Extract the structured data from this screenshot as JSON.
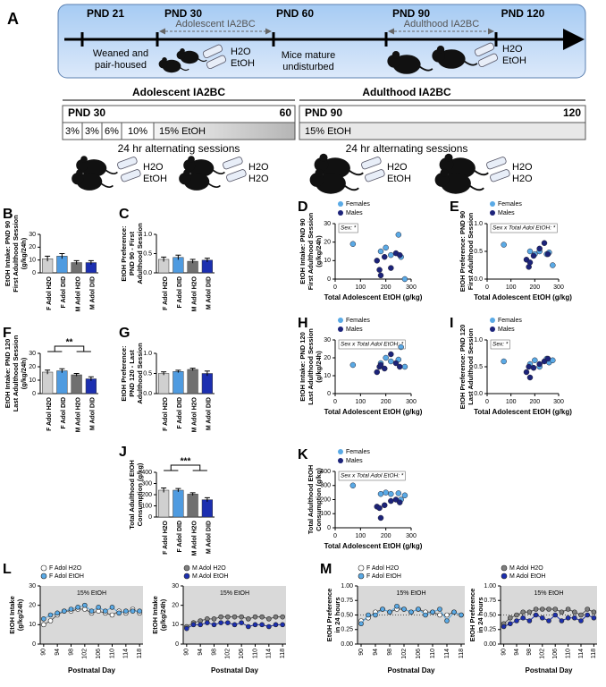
{
  "panel_a": {
    "label": "A",
    "timeline": {
      "marks": [
        "PND 21",
        "PND 30",
        "PND 60",
        "PND 90",
        "PND 120"
      ],
      "adolescent": "Adolescent IA2BC",
      "adulthood": "Adulthood IA2BC",
      "weaned": [
        "Weaned and",
        "pair-housed"
      ],
      "mature": [
        "Mice mature",
        "undisturbed"
      ],
      "bottles1": [
        "H2O",
        "EtOH"
      ],
      "bottles2": [
        "H2O",
        "EtOH"
      ]
    },
    "schedule": {
      "adolescent": {
        "title": "Adolescent IA2BC",
        "start": "PND 30",
        "end": "60",
        "steps": [
          "3%",
          "3%",
          "6%",
          "10%",
          "15% EtOH"
        ],
        "note": "24 hr alternating sessions",
        "bottles": [
          [
            "H2O",
            "EtOH"
          ],
          [
            "H2O",
            "H2O"
          ]
        ]
      },
      "adulthood": {
        "title": "Adulthood IA2BC",
        "start": "PND 90",
        "end": "120",
        "steps": [
          "15% EtOH"
        ],
        "note": "24 hr alternating sessions",
        "bottles": [
          [
            "H2O",
            "EtOH"
          ],
          [
            "H2O",
            "H2O"
          ]
        ]
      }
    }
  },
  "chart_data": [
    {
      "type": "bar",
      "panel": "B",
      "ylabel": [
        "EtOH Intake: PND 90",
        "First Adulthood Session",
        "(g/kg/24h)"
      ],
      "categories": [
        "F Adol H2O",
        "F Adol DID",
        "M Adol H2O",
        "M Adol DID"
      ],
      "values": [
        11,
        13,
        8,
        8
      ],
      "errors": [
        2,
        2,
        1.5,
        1.5
      ],
      "colors": [
        "#d0d0d0",
        "#4f9be0",
        "#707070",
        "#1c2fb0"
      ],
      "ylim": [
        0,
        30
      ],
      "yticks": [
        0,
        10,
        20,
        30
      ]
    },
    {
      "type": "bar",
      "panel": "C",
      "ylabel": [
        "EtOH Preference:",
        "PND 90 - First",
        "Adulthood Session"
      ],
      "categories": [
        "F Adol H2O",
        "F Adol DID",
        "M Adol H2O",
        "M Adol DID"
      ],
      "values": [
        0.35,
        0.4,
        0.3,
        0.33
      ],
      "errors": [
        0.06,
        0.06,
        0.05,
        0.05
      ],
      "colors": [
        "#d0d0d0",
        "#4f9be0",
        "#707070",
        "#1c2fb0"
      ],
      "ylim": [
        0,
        1
      ],
      "yticks": [
        {
          "value": 0,
          "label": "0.0"
        },
        0.5,
        {
          "value": 1,
          "label": "1.0"
        }
      ]
    },
    {
      "type": "scatter",
      "panel": "D",
      "ylabel": [
        "EtOH Intake: PND 90",
        "First Adulthood Session",
        "(g/kg/24h)"
      ],
      "xlabel": "Total Adolescent EtOH (g/kg)",
      "annotation": "Sex: *",
      "xlim": [
        0,
        300
      ],
      "xticks": [
        0,
        100,
        200,
        300
      ],
      "ylim": [
        0,
        30
      ],
      "yticks": [
        0,
        10,
        20,
        30
      ],
      "series": [
        {
          "name": "Females",
          "color": "#5aaae6",
          "x": [
            70,
            180,
            200,
            220,
            250,
            260,
            275
          ],
          "values": [
            19,
            15,
            17,
            13,
            24,
            12,
            0
          ]
        },
        {
          "name": "Males",
          "color": "#1c237a",
          "x": [
            165,
            175,
            180,
            195,
            220,
            240,
            255
          ],
          "values": [
            10,
            5,
            2,
            12,
            6,
            14,
            13
          ]
        }
      ]
    },
    {
      "type": "scatter",
      "panel": "E",
      "ylabel": [
        "EtOH Preference: PND 90",
        "First Adulthood Session"
      ],
      "xlabel": "Total Adolescent EtOH (g/kg)",
      "annotation": "Sex x Total Adol EtOH: *",
      "xlim": [
        0,
        300
      ],
      "xticks": [
        0,
        100,
        200,
        300
      ],
      "ylim": [
        0,
        1
      ],
      "yticks": [
        {
          "value": 0,
          "label": "0.0"
        },
        0.5,
        {
          "value": 1,
          "label": "1.0"
        }
      ],
      "series": [
        {
          "name": "Females",
          "color": "#5aaae6",
          "x": [
            70,
            180,
            200,
            220,
            250,
            260,
            275
          ],
          "values": [
            0.62,
            0.5,
            0.45,
            0.5,
            0.45,
            0.48,
            0.25
          ]
        },
        {
          "name": "Males",
          "color": "#1c237a",
          "x": [
            165,
            175,
            180,
            195,
            220,
            240,
            255
          ],
          "values": [
            0.35,
            0.22,
            0.3,
            0.42,
            0.55,
            0.65,
            0.45
          ]
        }
      ]
    },
    {
      "type": "bar",
      "panel": "F",
      "ylabel": [
        "EtOH Intake: PND 120",
        "Last Adulthood Session",
        "(g/kg/24h)"
      ],
      "annotation": "**",
      "categories": [
        "F Adol H2O",
        "F Adol DID",
        "M Adol H2O",
        "M Adol DID"
      ],
      "values": [
        16,
        17,
        14,
        11
      ],
      "errors": [
        1.5,
        1.5,
        1,
        1.5
      ],
      "colors": [
        "#d0d0d0",
        "#4f9be0",
        "#707070",
        "#1c2fb0"
      ],
      "ylim": [
        0,
        30
      ],
      "yticks": [
        0,
        10,
        20,
        30
      ]
    },
    {
      "type": "bar",
      "panel": "G",
      "ylabel": [
        "EtOH Preference:",
        "PND 120 - Last",
        "Adulthood Session"
      ],
      "categories": [
        "F Adol H2O",
        "F Adol DID",
        "M Adol H2O",
        "M Adol DID"
      ],
      "values": [
        0.5,
        0.55,
        0.6,
        0.5
      ],
      "errors": [
        0.04,
        0.03,
        0.03,
        0.06
      ],
      "colors": [
        "#d0d0d0",
        "#4f9be0",
        "#707070",
        "#1c2fb0"
      ],
      "ylim": [
        0,
        1
      ],
      "yticks": [
        {
          "value": 0,
          "label": "0.0"
        },
        0.5,
        {
          "value": 1,
          "label": "1.0"
        }
      ]
    },
    {
      "type": "scatter",
      "panel": "H",
      "ylabel": [
        "EtOH Intake: PND 120",
        "Last Adulthood Session",
        "(g/kg/24h)"
      ],
      "xlabel": "Total Adolescent EtOH (g/kg)",
      "annotation": "Sex x Total Adol EtOH: *",
      "xlim": [
        0,
        300
      ],
      "xticks": [
        0,
        100,
        200,
        300
      ],
      "ylim": [
        0,
        30
      ],
      "yticks": [
        0,
        10,
        20,
        30
      ],
      "series": [
        {
          "name": "Females",
          "color": "#5aaae6",
          "x": [
            70,
            180,
            200,
            220,
            250,
            260,
            275
          ],
          "values": [
            16,
            17,
            20,
            18,
            19,
            26,
            15
          ]
        },
        {
          "name": "Males",
          "color": "#1c237a",
          "x": [
            165,
            175,
            180,
            195,
            220,
            240,
            255
          ],
          "values": [
            12,
            15,
            16,
            14,
            22,
            17,
            15
          ]
        }
      ]
    },
    {
      "type": "scatter",
      "panel": "I",
      "ylabel": [
        "EtOH Preference: PND 120",
        "Last Adulthood Session"
      ],
      "xlabel": "Total Adolescent EtOH (g/kg)",
      "annotation": "Sex: *",
      "xlim": [
        0,
        300
      ],
      "xticks": [
        0,
        100,
        200,
        300
      ],
      "ylim": [
        0,
        1
      ],
      "yticks": [
        {
          "value": 0,
          "label": "0.0"
        },
        0.5,
        {
          "value": 1,
          "label": "1.0"
        }
      ],
      "series": [
        {
          "name": "Females",
          "color": "#5aaae6",
          "x": [
            70,
            180,
            200,
            220,
            250,
            260,
            275
          ],
          "values": [
            0.6,
            0.55,
            0.62,
            0.5,
            0.65,
            0.58,
            0.62
          ]
        },
        {
          "name": "Males",
          "color": "#1c237a",
          "x": [
            165,
            175,
            180,
            195,
            220,
            240,
            255
          ],
          "values": [
            0.4,
            0.5,
            0.3,
            0.48,
            0.55,
            0.6,
            0.65
          ]
        }
      ]
    },
    {
      "type": "bar",
      "panel": "J",
      "ylabel": [
        "Total Adulthood EtOH",
        "Consumption (g/kg)"
      ],
      "annotation": "***",
      "categories": [
        "F Adol H2O",
        "F Adol DID",
        "M Adol H2O",
        "M Adol DID"
      ],
      "values": [
        240,
        240,
        205,
        155
      ],
      "errors": [
        20,
        15,
        12,
        18
      ],
      "colors": [
        "#d0d0d0",
        "#4f9be0",
        "#707070",
        "#1c2fb0"
      ],
      "ylim": [
        0,
        400
      ],
      "yticks": [
        0,
        100,
        200,
        300,
        400
      ]
    },
    {
      "type": "scatter",
      "panel": "K",
      "ylabel": [
        "Total Adulthood EtOH",
        "Consumption (g/kg)"
      ],
      "xlabel": "Total Adolescent EtOH (g/kg)",
      "annotation": "Sex x Total  Adol  EtOH: *",
      "xlim": [
        0,
        300
      ],
      "xticks": [
        0,
        100,
        200,
        300
      ],
      "ylim": [
        0,
        400
      ],
      "yticks": [
        0,
        100,
        200,
        300,
        400
      ],
      "series": [
        {
          "name": "Females",
          "color": "#5aaae6",
          "x": [
            70,
            180,
            200,
            220,
            250,
            260,
            275
          ],
          "values": [
            300,
            240,
            250,
            240,
            245,
            200,
            230
          ]
        },
        {
          "name": "Males",
          "color": "#1c237a",
          "x": [
            165,
            175,
            180,
            195,
            220,
            240,
            255
          ],
          "values": [
            150,
            140,
            70,
            160,
            190,
            200,
            180
          ]
        }
      ]
    },
    {
      "type": "line",
      "panel": "L",
      "ylabel": [
        "EtOH Intake",
        "(g/kg/24h)"
      ],
      "xlabel": "Postnatal Day",
      "shade": "15% EtOH",
      "xlim": [
        89,
        119
      ],
      "xticks": [
        90,
        94,
        98,
        102,
        106,
        110,
        114,
        118
      ],
      "ylim": [
        0,
        30
      ],
      "yticks": [
        0,
        10,
        20,
        30
      ],
      "x": [
        90,
        92,
        94,
        96,
        98,
        100,
        102,
        104,
        106,
        108,
        110,
        112,
        114,
        116,
        118
      ],
      "series": [
        {
          "name": "F Adol H2O",
          "color": "#ffffff",
          "values": [
            10,
            12,
            15,
            17,
            17,
            18,
            18,
            16,
            17,
            16,
            15,
            17,
            16,
            18,
            16
          ]
        },
        {
          "name": "F Adol EtOH",
          "color": "#5aaae6",
          "values": [
            13,
            15,
            16,
            17,
            18,
            19,
            20,
            17,
            19,
            17,
            19,
            16,
            17,
            17,
            17
          ]
        }
      ]
    },
    {
      "type": "line",
      "ylabel": [
        "EtOH Intake",
        "(g/kg/24h)"
      ],
      "xlabel": "Postnatal Day",
      "shade": "15% EtOH",
      "xlim": [
        89,
        119
      ],
      "xticks": [
        90,
        94,
        98,
        102,
        106,
        110,
        114,
        118
      ],
      "ylim": [
        0,
        30
      ],
      "yticks": [
        0,
        10,
        20,
        30
      ],
      "x": [
        90,
        92,
        94,
        96,
        98,
        100,
        102,
        104,
        106,
        108,
        110,
        112,
        114,
        116,
        118
      ],
      "series": [
        {
          "name": "M Adol H2O",
          "color": "#808080",
          "values": [
            9,
            11,
            12,
            13,
            13,
            14,
            14,
            14,
            14,
            13,
            14,
            14,
            13,
            14,
            14
          ]
        },
        {
          "name": "M Adol EtOH",
          "color": "#1c2fb0",
          "values": [
            8,
            10,
            10,
            11,
            10,
            11,
            11,
            10,
            11,
            9,
            10,
            10,
            9,
            10,
            10
          ]
        }
      ]
    },
    {
      "type": "line",
      "panel": "M",
      "ylabel": [
        "EtOH Preference",
        "in 24 hours"
      ],
      "xlabel": "Postnatal Day",
      "shade": "15% EtOH",
      "hline": 0.5,
      "xlim": [
        89,
        119
      ],
      "xticks": [
        90,
        94,
        98,
        102,
        106,
        110,
        114,
        118
      ],
      "ylim": [
        0,
        1
      ],
      "yticks": [
        {
          "value": 0,
          "label": "0.00"
        },
        0.25,
        {
          "value": 0.5,
          "label": "0.50"
        },
        0.75,
        {
          "value": 1,
          "label": "1.00"
        }
      ],
      "x": [
        90,
        92,
        94,
        96,
        98,
        100,
        102,
        104,
        106,
        108,
        110,
        112,
        114,
        116,
        118
      ],
      "series": [
        {
          "name": "F Adol H2O",
          "color": "#ffffff",
          "values": [
            0.4,
            0.45,
            0.55,
            0.6,
            0.55,
            0.6,
            0.6,
            0.55,
            0.6,
            0.55,
            0.55,
            0.5,
            0.5,
            0.55,
            0.5
          ]
        },
        {
          "name": "F Adol EtOH",
          "color": "#5aaae6",
          "values": [
            0.35,
            0.5,
            0.5,
            0.6,
            0.55,
            0.65,
            0.6,
            0.55,
            0.6,
            0.5,
            0.55,
            0.6,
            0.4,
            0.55,
            0.5
          ]
        }
      ]
    },
    {
      "type": "line",
      "ylabel": [
        "EtOH Preference",
        "in 24 hours"
      ],
      "xlabel": "Postnatal Day",
      "shade": "15% EtOH",
      "hline": 0.5,
      "xlim": [
        89,
        119
      ],
      "xticks": [
        90,
        94,
        98,
        102,
        106,
        110,
        114,
        118
      ],
      "ylim": [
        0,
        1
      ],
      "yticks": [
        {
          "value": 0,
          "label": "0.00"
        },
        0.25,
        {
          "value": 0.5,
          "label": "0.50"
        },
        0.75,
        {
          "value": 1,
          "label": "1.00"
        }
      ],
      "x": [
        90,
        92,
        94,
        96,
        98,
        100,
        102,
        104,
        106,
        108,
        110,
        112,
        114,
        116,
        118
      ],
      "series": [
        {
          "name": "M Adol H2O",
          "color": "#808080",
          "values": [
            0.35,
            0.45,
            0.5,
            0.55,
            0.55,
            0.6,
            0.6,
            0.6,
            0.6,
            0.55,
            0.6,
            0.55,
            0.5,
            0.6,
            0.55
          ]
        },
        {
          "name": "M Adol EtOH",
          "color": "#1c2fb0",
          "values": [
            0.3,
            0.35,
            0.4,
            0.45,
            0.4,
            0.5,
            0.45,
            0.4,
            0.5,
            0.4,
            0.45,
            0.45,
            0.4,
            0.5,
            0.45
          ]
        }
      ]
    }
  ]
}
